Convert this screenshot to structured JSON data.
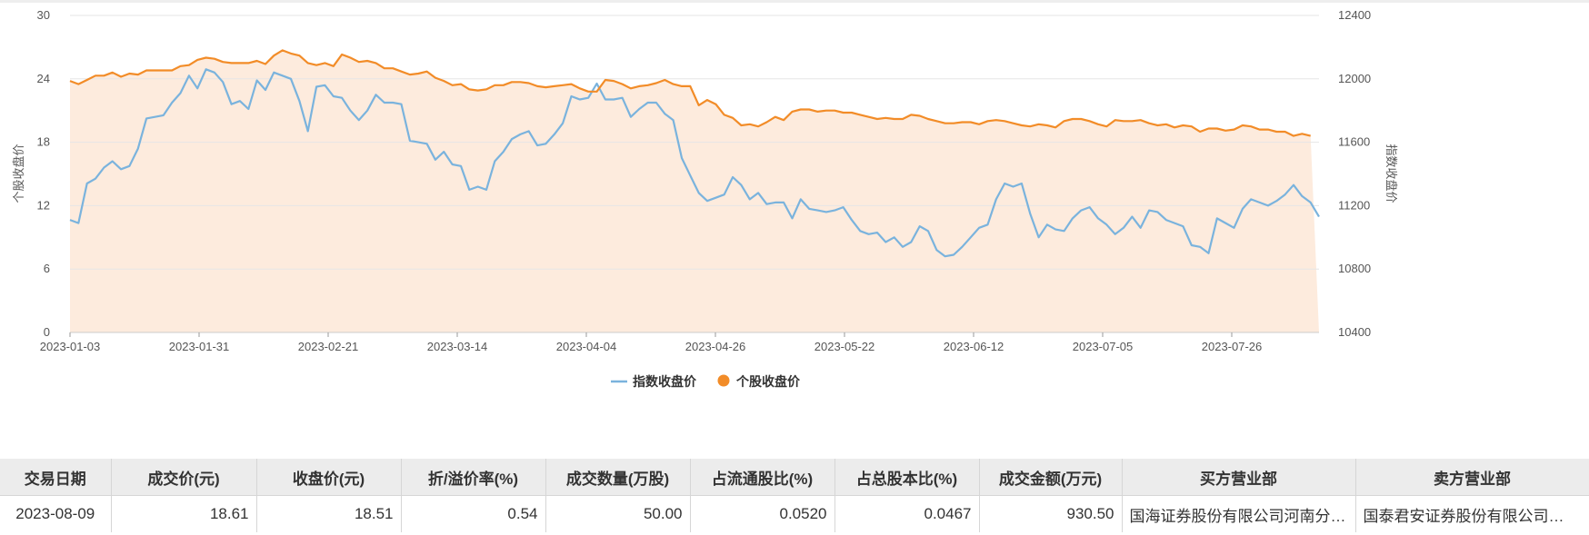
{
  "chart_data": {
    "type": "line",
    "x_ticks": [
      "2023-01-03",
      "2023-01-31",
      "2023-02-21",
      "2023-03-14",
      "2023-04-04",
      "2023-04-26",
      "2023-05-22",
      "2023-06-12",
      "2023-07-05",
      "2023-07-26"
    ],
    "ylabel_left": "个股收盘价",
    "ylabel_right": "指数收盘价",
    "ylim_left": [
      0,
      30
    ],
    "yticks_left": [
      "0",
      "6",
      "12",
      "18",
      "24",
      "30"
    ],
    "ylim_right": [
      10400,
      12400
    ],
    "yticks_right": [
      "10400",
      "10800",
      "11200",
      "11600",
      "12000",
      "12400"
    ],
    "legend": [
      "指数收盘价",
      "个股收盘价"
    ],
    "legend_position": "bottom-center",
    "grid": true,
    "colors": {
      "index": "#7ab3dd",
      "stock": "#f28c28",
      "area": "#fdebdd"
    },
    "series": [
      {
        "name": "指数收盘价",
        "axis": "right",
        "values": [
          11110,
          11090,
          11340,
          11370,
          11440,
          11480,
          11430,
          11450,
          11560,
          11750,
          11760,
          11770,
          11850,
          11910,
          12020,
          11940,
          12060,
          12040,
          11980,
          11840,
          11860,
          11810,
          11990,
          11930,
          12040,
          12020,
          12000,
          11860,
          11670,
          11950,
          11960,
          11890,
          11880,
          11800,
          11740,
          11800,
          11900,
          11850,
          11850,
          11840,
          11610,
          11600,
          11590,
          11490,
          11540,
          11460,
          11450,
          11300,
          11320,
          11300,
          11480,
          11540,
          11620,
          11650,
          11670,
          11580,
          11590,
          11650,
          11720,
          11890,
          11870,
          11880,
          11970,
          11870,
          11870,
          11880,
          11760,
          11810,
          11850,
          11850,
          11780,
          11740,
          11500,
          11390,
          11280,
          11230,
          11250,
          11270,
          11380,
          11330,
          11240,
          11280,
          11210,
          11220,
          11220,
          11120,
          11240,
          11180,
          11170,
          11160,
          11170,
          11190,
          11110,
          11040,
          11020,
          11030,
          10970,
          11000,
          10940,
          10970,
          11070,
          11040,
          10920,
          10880,
          10890,
          10940,
          11000,
          11060,
          11080,
          11240,
          11340,
          11320,
          11340,
          11150,
          11000,
          11080,
          11050,
          11040,
          11120,
          11170,
          11190,
          11120,
          11080,
          11020,
          11060,
          11130,
          11060,
          11170,
          11160,
          11110,
          11090,
          11070,
          10950,
          10940,
          10900,
          11120,
          11090,
          11060,
          11180,
          11240,
          11220,
          11200,
          11230,
          11270,
          11330,
          11260,
          11220,
          11130
        ]
      },
      {
        "name": "个股收盘价",
        "axis": "left",
        "values": [
          23.8,
          23.5,
          23.9,
          24.3,
          24.3,
          24.6,
          24.2,
          24.5,
          24.4,
          24.8,
          24.8,
          24.8,
          24.8,
          25.2,
          25.3,
          25.8,
          26.0,
          25.9,
          25.6,
          25.5,
          25.5,
          25.5,
          25.7,
          25.4,
          26.2,
          26.7,
          26.4,
          26.2,
          25.5,
          25.3,
          25.5,
          25.2,
          26.3,
          26.0,
          25.6,
          25.7,
          25.5,
          25.0,
          25.0,
          24.7,
          24.4,
          24.5,
          24.7,
          24.1,
          23.8,
          23.4,
          23.5,
          23.0,
          22.9,
          23.0,
          23.4,
          23.4,
          23.7,
          23.7,
          23.6,
          23.3,
          23.2,
          23.3,
          23.4,
          23.5,
          23.1,
          22.8,
          22.8,
          23.9,
          23.8,
          23.5,
          23.1,
          23.3,
          23.4,
          23.6,
          23.9,
          23.5,
          23.3,
          23.3,
          21.5,
          22.0,
          21.6,
          20.6,
          20.3,
          19.6,
          19.7,
          19.5,
          19.9,
          20.4,
          20.1,
          20.9,
          21.1,
          21.1,
          20.9,
          21.0,
          21.0,
          20.8,
          20.8,
          20.6,
          20.4,
          20.2,
          20.3,
          20.2,
          20.2,
          20.6,
          20.5,
          20.2,
          20.0,
          19.8,
          19.8,
          19.9,
          19.9,
          19.7,
          20.0,
          20.1,
          20.0,
          19.8,
          19.6,
          19.5,
          19.7,
          19.6,
          19.4,
          20.0,
          20.2,
          20.2,
          20.0,
          19.7,
          19.5,
          20.1,
          20.0,
          20.0,
          20.1,
          19.8,
          19.6,
          19.7,
          19.4,
          19.6,
          19.5,
          19.0,
          19.3,
          19.3,
          19.1,
          19.2,
          19.6,
          19.5,
          19.2,
          19.2,
          19.0,
          19.0,
          18.6,
          18.8,
          18.6
        ]
      }
    ]
  },
  "table": {
    "headers": [
      "交易日期",
      "成交价(元)",
      "收盘价(元)",
      "折/溢价率(%)",
      "成交数量(万股)",
      "占流通股比(%)",
      "占总股本比(%)",
      "成交金额(万元)",
      "买方营业部",
      "卖方营业部"
    ],
    "rows": [
      [
        "2023-08-09",
        "18.61",
        "18.51",
        "0.54",
        "50.00",
        "0.0520",
        "0.0467",
        "930.50",
        "国海证券股份有限公司河南分…",
        "国泰君安证券股份有限公司…"
      ]
    ]
  }
}
